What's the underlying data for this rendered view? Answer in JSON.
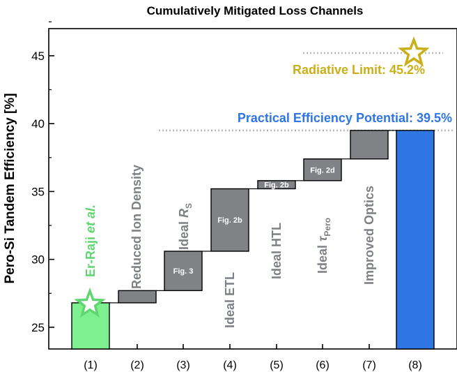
{
  "chart_data": {
    "type": "bar",
    "title": "Cumulatively Mitigated Loss Channels",
    "ylabel": "Pero-Si Tandem Efficiency [%]",
    "xlabel": "",
    "ylim": [
      23.4,
      47.0
    ],
    "yticks": [
      25,
      30,
      35,
      40,
      45
    ],
    "grid": false,
    "categories": [
      "(1)",
      "(2)",
      "(3)",
      "(4)",
      "(5)",
      "(6)",
      "(7)",
      "(8)"
    ],
    "bars": [
      {
        "label": "Er-Raji et al.",
        "base": 23.4,
        "top": 26.8,
        "color": "#7ef08f",
        "box_label": ""
      },
      {
        "label": "Reduced Ion Density",
        "base": 26.8,
        "top": 27.7,
        "color": "#808285",
        "box_label": ""
      },
      {
        "label": "Ideal RS",
        "base": 27.7,
        "top": 30.6,
        "color": "#808285",
        "box_label": "Fig. 3"
      },
      {
        "label": "Ideal ETL",
        "base": 30.6,
        "top": 35.2,
        "color": "#808285",
        "box_label": "Fig. 2b"
      },
      {
        "label": "Ideal HTL",
        "base": 35.2,
        "top": 35.8,
        "color": "#808285",
        "box_label": "Fig. 2b"
      },
      {
        "label": "Ideal τPero",
        "base": 35.8,
        "top": 37.4,
        "color": "#808285",
        "box_label": "Fig. 2d"
      },
      {
        "label": "Improved Optics",
        "base": 37.4,
        "top": 39.5,
        "color": "#808285",
        "box_label": ""
      },
      {
        "label": "Practical Efficiency Potential",
        "base": 23.4,
        "top": 39.5,
        "color": "#2f75e3",
        "box_label": ""
      }
    ],
    "annotations": {
      "radiative_limit": {
        "text": "Radiative Limit: 45.2%",
        "value": 45.2,
        "color": "#c9b018"
      },
      "practical_potential": {
        "text": "Practical Efficiency Potential: 39.5%",
        "value": 39.5,
        "color": "#2f75e3"
      },
      "er_raji_star": {
        "value": 26.8,
        "color": "#5fd66f"
      }
    },
    "bar_text": {
      "b1_main": "Er-Raji ",
      "b1_italic": "et al.",
      "b2": "Reduced Ion Density",
      "b3_main": "Ideal ",
      "b3_var": "R",
      "b3_sub": "S",
      "b4": "Ideal ETL",
      "b5": "Ideal HTL",
      "b6_main": "Ideal ",
      "b6_var": "τ",
      "b6_sub": "Pero",
      "b7": "Improved Optics"
    }
  }
}
